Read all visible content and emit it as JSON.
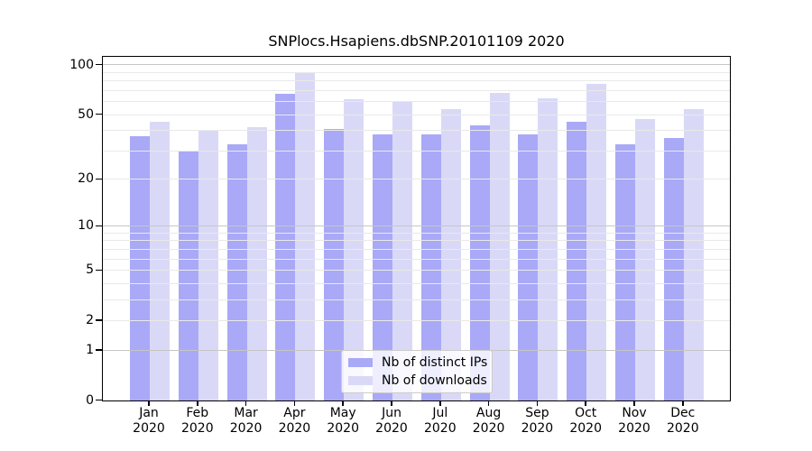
{
  "figure": {
    "background": "#ffffff",
    "axis_color": "#000000"
  },
  "chart_data": {
    "type": "bar",
    "title": "SNPlocs.Hsapiens.dbSNP.20101109 2020",
    "categories": [
      "Jan",
      "Feb",
      "Mar",
      "Apr",
      "May",
      "Jun",
      "Jul",
      "Aug",
      "Sep",
      "Oct",
      "Nov",
      "Dec"
    ],
    "year_label": "2020",
    "series": [
      {
        "name": "Nb of distinct IPs",
        "color": "#a9a9f7",
        "values": [
          37,
          30,
          33,
          67,
          41,
          38,
          38,
          43,
          38,
          45,
          33,
          36
        ]
      },
      {
        "name": "Nb of downloads",
        "color": "#d9d9f7",
        "values": [
          45,
          40,
          42,
          90,
          62,
          60,
          54,
          68,
          63,
          77,
          47,
          54
        ]
      }
    ],
    "xlabel": "",
    "ylabel": "",
    "yscale": "log1p",
    "ylim": [
      0,
      111
    ],
    "yticks_labeled": [
      0,
      1,
      2,
      5,
      10,
      20,
      50,
      100
    ],
    "gridlines_major": [
      1,
      10,
      100
    ],
    "gridlines_minor": [
      2,
      3,
      4,
      5,
      6,
      7,
      8,
      9,
      20,
      30,
      40,
      50,
      60,
      70,
      80,
      90
    ],
    "grid_major_color": "#c6c6c6",
    "grid_minor_color": "#e9e9e9",
    "legend_position": "lower center",
    "grid": "on"
  }
}
